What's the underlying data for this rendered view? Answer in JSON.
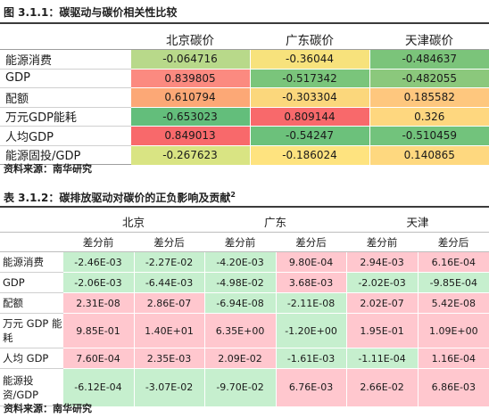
{
  "table1": {
    "caption": "图 3.1.1：碳驱动与碳价相关性比较",
    "columns": [
      "北京碳价",
      "广东碳价",
      "天津碳价"
    ],
    "rows": [
      {
        "label": "能源消费",
        "values": [
          "-0.064716",
          "-0.36044",
          "-0.484637"
        ],
        "colors": [
          "#b8d98a",
          "#f7e27c",
          "#7bc47a"
        ]
      },
      {
        "label": "GDP",
        "values": [
          "0.839805",
          "-0.517342",
          "-0.482055"
        ],
        "colors": [
          "#fb8a80",
          "#7ac57b",
          "#8bc87c"
        ]
      },
      {
        "label": "配额",
        "values": [
          "0.610794",
          "-0.303304",
          "0.185582"
        ],
        "colors": [
          "#fca876",
          "#fbd77c",
          "#fec77e"
        ]
      },
      {
        "label": "万元GDP能耗",
        "values": [
          "-0.653023",
          "0.809144",
          "0.326"
        ],
        "colors": [
          "#63be7b",
          "#f8696b",
          "#fed77f"
        ]
      },
      {
        "label": "人均GDP",
        "values": [
          "0.849013",
          "-0.54247",
          "-0.510459"
        ],
        "colors": [
          "#f8696b",
          "#6cc17b",
          "#72c37c"
        ]
      },
      {
        "label": "能源固投/GDP",
        "values": [
          "-0.267623",
          "-0.186024",
          "0.140865"
        ],
        "colors": [
          "#d9e483",
          "#fee37f",
          "#fed87f"
        ]
      }
    ],
    "source": "资料来源：南华研究"
  },
  "table2": {
    "caption": "表 3.1.2：碳排放驱动对碳价的正负影响及贡献",
    "caption_sup": "2",
    "cities": [
      "北京",
      "广东",
      "天津"
    ],
    "subheaders": [
      "差分前",
      "差分后",
      "差分前",
      "差分后",
      "差分前",
      "差分后"
    ],
    "rows": [
      {
        "label": "能源消费",
        "cls": "r1",
        "values": [
          "-2.46E-03",
          "-2.27E-02",
          "-4.20E-03",
          "9.80E-04",
          "2.94E-03",
          "6.16E-04"
        ],
        "colors": [
          "#c6efce",
          "#c6efce",
          "#c6efce",
          "#ffc7ce",
          "#ffc7ce",
          "#ffc7ce"
        ]
      },
      {
        "label": "GDP",
        "cls": "r1",
        "values": [
          "-2.06E-03",
          "-6.44E-03",
          "-4.98E-02",
          "3.68E-03",
          "-2.02E-03",
          "-9.85E-04"
        ],
        "colors": [
          "#c6efce",
          "#c6efce",
          "#c6efce",
          "#ffc7ce",
          "#c6efce",
          "#c6efce"
        ]
      },
      {
        "label": "配额",
        "cls": "r1",
        "values": [
          "2.31E-08",
          "2.86E-07",
          "-6.94E-08",
          "-2.11E-08",
          "2.02E-07",
          "5.42E-08"
        ],
        "colors": [
          "#ffc7ce",
          "#ffc7ce",
          "#c6efce",
          "#c6efce",
          "#ffc7ce",
          "#ffc7ce"
        ]
      },
      {
        "label": "万元 GDP 能耗",
        "cls": "r2",
        "values": [
          "9.85E-01",
          "1.40E+01",
          "6.35E+00",
          "-1.20E+00",
          "1.95E-01",
          "1.09E+00"
        ],
        "colors": [
          "#ffc7ce",
          "#ffc7ce",
          "#ffc7ce",
          "#c6efce",
          "#ffc7ce",
          "#ffc7ce"
        ]
      },
      {
        "label": "人均 GDP",
        "cls": "r1",
        "values": [
          "7.60E-04",
          "2.35E-03",
          "2.09E-02",
          "-1.61E-03",
          "-1.11E-04",
          "1.16E-04"
        ],
        "colors": [
          "#ffc7ce",
          "#ffc7ce",
          "#ffc7ce",
          "#c6efce",
          "#c6efce",
          "#ffc7ce"
        ]
      },
      {
        "label": "能源投资/GDP",
        "cls": "r3",
        "values": [
          "-6.12E-04",
          "-3.07E-02",
          "-9.70E-02",
          "6.76E-03",
          "2.66E-02",
          "6.86E-03"
        ],
        "colors": [
          "#c6efce",
          "#c6efce",
          "#c6efce",
          "#ffc7ce",
          "#ffc7ce",
          "#ffc7ce"
        ]
      }
    ],
    "source": "资料来源：南华研究"
  }
}
